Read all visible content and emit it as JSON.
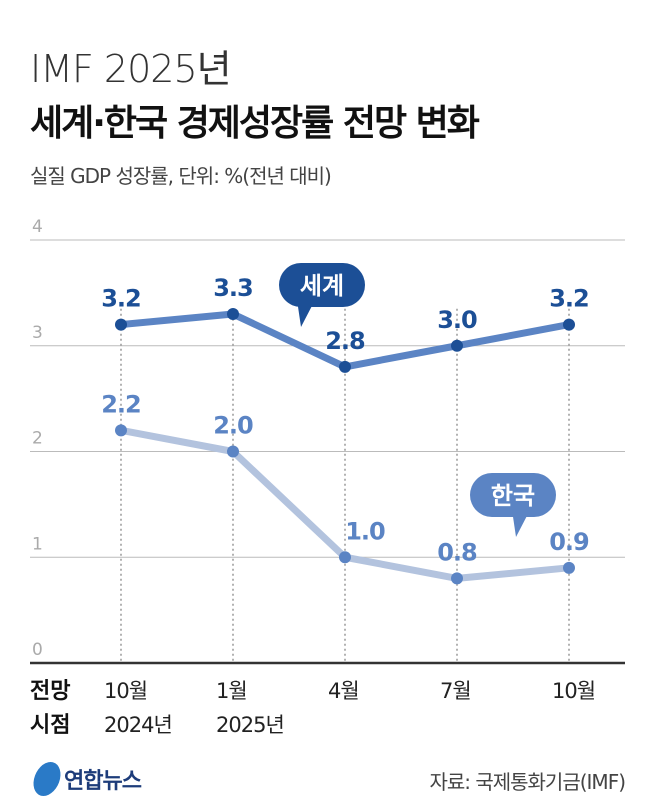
{
  "title_line1": "IMF 2025년",
  "title_line2": "세계·한국 경제성장률 전망 변화",
  "subtitle": "실질 GDP 성장률, 단위: %(전년 대비)",
  "source": "자료: 국제통화기금(IMF)",
  "logo": "연합뉴스",
  "chart_data": {
    "type": "line",
    "x_row_label": [
      "전망",
      "시점"
    ],
    "categories": [
      "10월",
      "1월",
      "4월",
      "7월",
      "10월"
    ],
    "category_years": [
      "2024년",
      "2025년",
      "",
      "",
      ""
    ],
    "ylim": [
      0,
      4
    ],
    "yticks": [
      "0",
      "1",
      "2",
      "3",
      "4"
    ],
    "grid": true,
    "series": [
      {
        "name": "세계",
        "values": [
          3.2,
          3.3,
          2.8,
          3.0,
          3.2
        ],
        "labels": [
          "3.2",
          "3.3",
          "2.8",
          "3.0",
          "3.2"
        ],
        "line_color": "#5b84c4",
        "dot_color": "#1c4f96",
        "label_color": "#1c4f96"
      },
      {
        "name": "한국",
        "values": [
          2.2,
          2.0,
          1.0,
          0.8,
          0.9
        ],
        "labels": [
          "2.2",
          "2.0",
          "1.0",
          "0.8",
          "0.9"
        ],
        "line_color": "#b3c3de",
        "dot_color": "#5b84c4",
        "label_color": "#5b84c4"
      }
    ]
  }
}
